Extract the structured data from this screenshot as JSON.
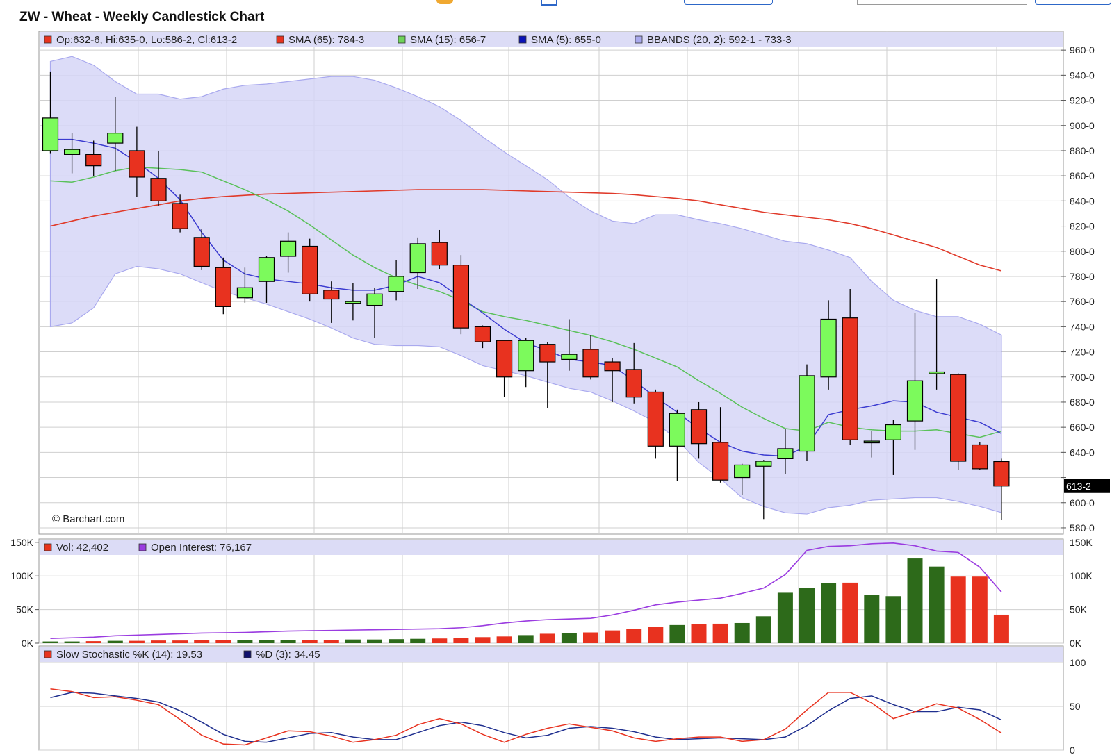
{
  "title": "ZW - Wheat - Weekly Candlestick Chart",
  "watermark": "© Barchart.com",
  "colors": {
    "up": "#7cfa5c",
    "down": "#e8321f",
    "vol_up": "#2d6a1a",
    "vol_down": "#e8321f",
    "sma65": "#e03a2a",
    "sma15": "#5ac15a",
    "sma5": "#3b3bd0",
    "bband_fill": "#d6d6f7",
    "bband_edge": "#a9a9ee",
    "legend_bg": "#dcdcf6",
    "grid": "#cfcfcf",
    "open_interest": "#9a3be0",
    "stoch_k": "#e8321f",
    "stoch_d": "#1f2f8f"
  },
  "legends": {
    "price": [
      {
        "text": "Op:632-6, Hi:635-0, Lo:586-2, Cl:613-2",
        "color": "#e8321f"
      },
      {
        "text": "SMA (65): 784-3",
        "color": "#e8321f"
      },
      {
        "text": "SMA (15): 656-7",
        "color": "#6fd35a"
      },
      {
        "text": "SMA (5): 655-0",
        "color": "#0a12b8"
      },
      {
        "text": "BBANDS (20, 2): 592-1 - 733-3",
        "color": "#a9a9ee"
      }
    ],
    "volume": [
      {
        "text": "Vol: 42,402",
        "color": "#e8321f"
      },
      {
        "text": "Open Interest: 76,167",
        "color": "#9a3be0"
      }
    ],
    "stoch": [
      {
        "text": "Slow Stochastic %K (14): 19.53",
        "color": "#e8321f"
      },
      {
        "text": "%D (3): 34.45",
        "color": "#10106e"
      }
    ]
  },
  "last_price_tag": "613-2",
  "chart_data": [
    {
      "type": "candlestick",
      "title": "ZW - Wheat - Weekly Candlestick Chart",
      "ylim": [
        575,
        975
      ],
      "yticks": [
        {
          "v": 580,
          "label": "580-0"
        },
        {
          "v": 600,
          "label": "600-0"
        },
        {
          "v": 620,
          "label": ""
        },
        {
          "v": 640,
          "label": "640-0"
        },
        {
          "v": 660,
          "label": "660-0"
        },
        {
          "v": 680,
          "label": "680-0"
        },
        {
          "v": 700,
          "label": "700-0"
        },
        {
          "v": 720,
          "label": "720-0"
        },
        {
          "v": 740,
          "label": "740-0"
        },
        {
          "v": 760,
          "label": "760-0"
        },
        {
          "v": 780,
          "label": "780-0"
        },
        {
          "v": 800,
          "label": "800-0"
        },
        {
          "v": 820,
          "label": "820-0"
        },
        {
          "v": 840,
          "label": "840-0"
        },
        {
          "v": 860,
          "label": "860-0"
        },
        {
          "v": 880,
          "label": "880-0"
        },
        {
          "v": 900,
          "label": "900-0"
        },
        {
          "v": 920,
          "label": "920-0"
        },
        {
          "v": 940,
          "label": "940-0"
        },
        {
          "v": 960,
          "label": "960-0"
        }
      ],
      "candles": [
        {
          "o": 880,
          "h": 943,
          "l": 878,
          "c": 906
        },
        {
          "o": 877,
          "h": 894,
          "l": 862,
          "c": 881
        },
        {
          "o": 877,
          "h": 888,
          "l": 860,
          "c": 868
        },
        {
          "o": 886,
          "h": 923,
          "l": 864,
          "c": 894
        },
        {
          "o": 880,
          "h": 899,
          "l": 843,
          "c": 859
        },
        {
          "o": 858,
          "h": 880,
          "l": 836,
          "c": 840
        },
        {
          "o": 838,
          "h": 845,
          "l": 815,
          "c": 818
        },
        {
          "o": 811,
          "h": 818,
          "l": 785,
          "c": 788
        },
        {
          "o": 787,
          "h": 795,
          "l": 750,
          "c": 756
        },
        {
          "o": 763,
          "h": 787,
          "l": 759,
          "c": 771
        },
        {
          "o": 776,
          "h": 796,
          "l": 759,
          "c": 795
        },
        {
          "o": 796,
          "h": 815,
          "l": 783,
          "c": 808
        },
        {
          "o": 804,
          "h": 810,
          "l": 760,
          "c": 766
        },
        {
          "o": 769,
          "h": 776,
          "l": 743,
          "c": 762
        },
        {
          "o": 760,
          "h": 775,
          "l": 745,
          "c": 760
        },
        {
          "o": 757,
          "h": 771,
          "l": 731,
          "c": 766
        },
        {
          "o": 768,
          "h": 793,
          "l": 761,
          "c": 780
        },
        {
          "o": 783,
          "h": 811,
          "l": 770,
          "c": 806
        },
        {
          "o": 807,
          "h": 817,
          "l": 786,
          "c": 789
        },
        {
          "o": 789,
          "h": 797,
          "l": 734,
          "c": 739
        },
        {
          "o": 740,
          "h": 741,
          "l": 723,
          "c": 728
        },
        {
          "o": 729,
          "h": 729,
          "l": 684,
          "c": 700
        },
        {
          "o": 705,
          "h": 731,
          "l": 692,
          "c": 729
        },
        {
          "o": 726,
          "h": 728,
          "l": 675,
          "c": 712
        },
        {
          "o": 714,
          "h": 746,
          "l": 705,
          "c": 718
        },
        {
          "o": 722,
          "h": 733,
          "l": 698,
          "c": 700
        },
        {
          "o": 712,
          "h": 715,
          "l": 680,
          "c": 705
        },
        {
          "o": 706,
          "h": 727,
          "l": 679,
          "c": 684
        },
        {
          "o": 688,
          "h": 690,
          "l": 635,
          "c": 645
        },
        {
          "o": 645,
          "h": 674,
          "l": 617,
          "c": 671
        },
        {
          "o": 674,
          "h": 680,
          "l": 635,
          "c": 647
        },
        {
          "o": 648,
          "h": 676,
          "l": 616,
          "c": 618
        },
        {
          "o": 620,
          "h": 631,
          "l": 606,
          "c": 630
        },
        {
          "o": 629,
          "h": 634,
          "l": 587,
          "c": 633
        },
        {
          "o": 635,
          "h": 659,
          "l": 623,
          "c": 643
        },
        {
          "o": 641,
          "h": 710,
          "l": 633,
          "c": 701
        },
        {
          "o": 700,
          "h": 761,
          "l": 690,
          "c": 746
        },
        {
          "o": 747,
          "h": 770,
          "l": 646,
          "c": 650
        },
        {
          "o": 649,
          "h": 657,
          "l": 636,
          "c": 649
        },
        {
          "o": 650,
          "h": 666,
          "l": 622,
          "c": 662
        },
        {
          "o": 665,
          "h": 751,
          "l": 642,
          "c": 697
        },
        {
          "o": 703,
          "h": 778,
          "l": 690,
          "c": 704
        },
        {
          "o": 702,
          "h": 703,
          "l": 626,
          "c": 633
        },
        {
          "o": 646,
          "h": 648,
          "l": 626,
          "c": 627
        },
        {
          "o": 632.75,
          "h": 635,
          "l": 586.25,
          "c": 613.25
        }
      ],
      "sma65": [
        820,
        824,
        828,
        831,
        834,
        837,
        840,
        842,
        843.5,
        844.5,
        845.5,
        846,
        846.5,
        847,
        847.5,
        848,
        848.5,
        849,
        849,
        849,
        849,
        848.5,
        848,
        847.5,
        847,
        846.5,
        846,
        845,
        843.5,
        842,
        840,
        837,
        834,
        831,
        829,
        827,
        825,
        822,
        818,
        813,
        808,
        803,
        796,
        789,
        784.375
      ],
      "sma15": [
        856,
        855,
        859,
        864,
        867,
        866,
        865,
        863,
        856,
        849,
        841,
        832,
        821,
        809,
        797,
        787,
        779,
        773,
        768,
        761,
        752,
        748,
        745,
        741,
        737,
        733,
        728,
        722,
        715,
        708,
        697,
        687,
        676,
        667,
        659,
        657,
        664,
        660,
        658,
        657,
        657,
        658,
        655,
        652,
        656.875
      ],
      "sma5": [
        889,
        889,
        886,
        882,
        871,
        858,
        841,
        815,
        793,
        782,
        778,
        776,
        774,
        771,
        769,
        769,
        773,
        780,
        775,
        763,
        751,
        738,
        727,
        721,
        714,
        712,
        709,
        697,
        684,
        672,
        659,
        648,
        641,
        638,
        637,
        645,
        670,
        674,
        677,
        681,
        680,
        672,
        668,
        664,
        655
      ],
      "bb_upper": [
        951,
        955,
        948,
        935,
        925,
        925,
        921,
        923,
        929,
        932,
        933,
        935,
        937,
        939,
        939,
        936,
        930,
        923,
        915,
        904,
        891,
        879,
        868,
        857,
        843,
        832,
        824,
        822,
        829,
        829,
        825,
        822,
        818,
        813,
        808,
        806,
        801,
        795,
        776,
        761,
        753,
        748,
        748,
        742,
        733.375
      ],
      "bb_lower": [
        740,
        743,
        755,
        782,
        788,
        786,
        782,
        775,
        768,
        763,
        758,
        752,
        746,
        739,
        731,
        726,
        725,
        725,
        724,
        717,
        709,
        705,
        701,
        696,
        691,
        688,
        681,
        673,
        664,
        650,
        632,
        619,
        604,
        597,
        592,
        591,
        596,
        598,
        602,
        603,
        604,
        604,
        601,
        597,
        592.125
      ]
    },
    {
      "type": "bar",
      "title": "",
      "ylim": [
        0,
        155000
      ],
      "yticks_right": [
        {
          "v": 0,
          "label": "0K"
        },
        {
          "v": 50000,
          "label": "50K"
        },
        {
          "v": 100000,
          "label": "100K"
        },
        {
          "v": 150000,
          "label": "150K"
        }
      ],
      "yticks_left": [
        {
          "v": 0,
          "label": "0K"
        },
        {
          "v": 50000,
          "label": "50K"
        },
        {
          "v": 100000,
          "label": "100K"
        },
        {
          "v": 150000,
          "label": "150K"
        }
      ],
      "volume": [
        2500,
        2500,
        3000,
        3500,
        3500,
        4000,
        4000,
        4500,
        4500,
        4500,
        4500,
        5000,
        5000,
        5000,
        5500,
        5500,
        6000,
        6500,
        7000,
        7500,
        9000,
        10000,
        12000,
        14000,
        15000,
        16000,
        19000,
        21000,
        24000,
        27000,
        28000,
        29000,
        30000,
        40000,
        75000,
        82000,
        89000,
        90000,
        72000,
        70000,
        126000,
        114000,
        99000,
        99000,
        42402
      ],
      "open_interest": [
        7000,
        8000,
        9000,
        11000,
        12000,
        13000,
        14000,
        15000,
        15500,
        16000,
        17000,
        18000,
        18500,
        19000,
        19500,
        20000,
        20500,
        21000,
        21500,
        23000,
        26000,
        30000,
        33000,
        35000,
        36000,
        37000,
        42000,
        49000,
        57000,
        61000,
        64000,
        67000,
        74000,
        82000,
        102000,
        138000,
        144000,
        145000,
        148000,
        149000,
        145000,
        137000,
        135000,
        113000,
        76167
      ]
    },
    {
      "type": "line",
      "title": "",
      "ylim": [
        0,
        100
      ],
      "yticks": [
        {
          "v": 0,
          "label": "0"
        },
        {
          "v": 50,
          "label": "50"
        },
        {
          "v": 100,
          "label": "100"
        }
      ],
      "series": [
        {
          "name": "Slow Stochastic %K (14)",
          "values": [
            70,
            67,
            60,
            61,
            57,
            52,
            35,
            17,
            7,
            6,
            14,
            22,
            21,
            16,
            9,
            12,
            17,
            29,
            36,
            30,
            18,
            9,
            18,
            25,
            30,
            26,
            22,
            14,
            10,
            13,
            15,
            15,
            10,
            12,
            24,
            46,
            66,
            66,
            54,
            36,
            44,
            53,
            48,
            35,
            19.53
          ]
        },
        {
          "name": "%D (3)",
          "values": [
            60,
            66,
            65,
            62,
            59,
            55,
            45,
            32,
            18,
            10,
            9,
            14,
            19,
            20,
            15,
            12,
            12,
            20,
            28,
            32,
            28,
            20,
            14,
            17,
            25,
            27,
            25,
            21,
            15,
            12,
            13,
            14,
            13,
            12,
            15,
            28,
            45,
            59,
            62,
            52,
            44,
            44,
            49,
            46,
            34.45
          ]
        }
      ]
    }
  ]
}
